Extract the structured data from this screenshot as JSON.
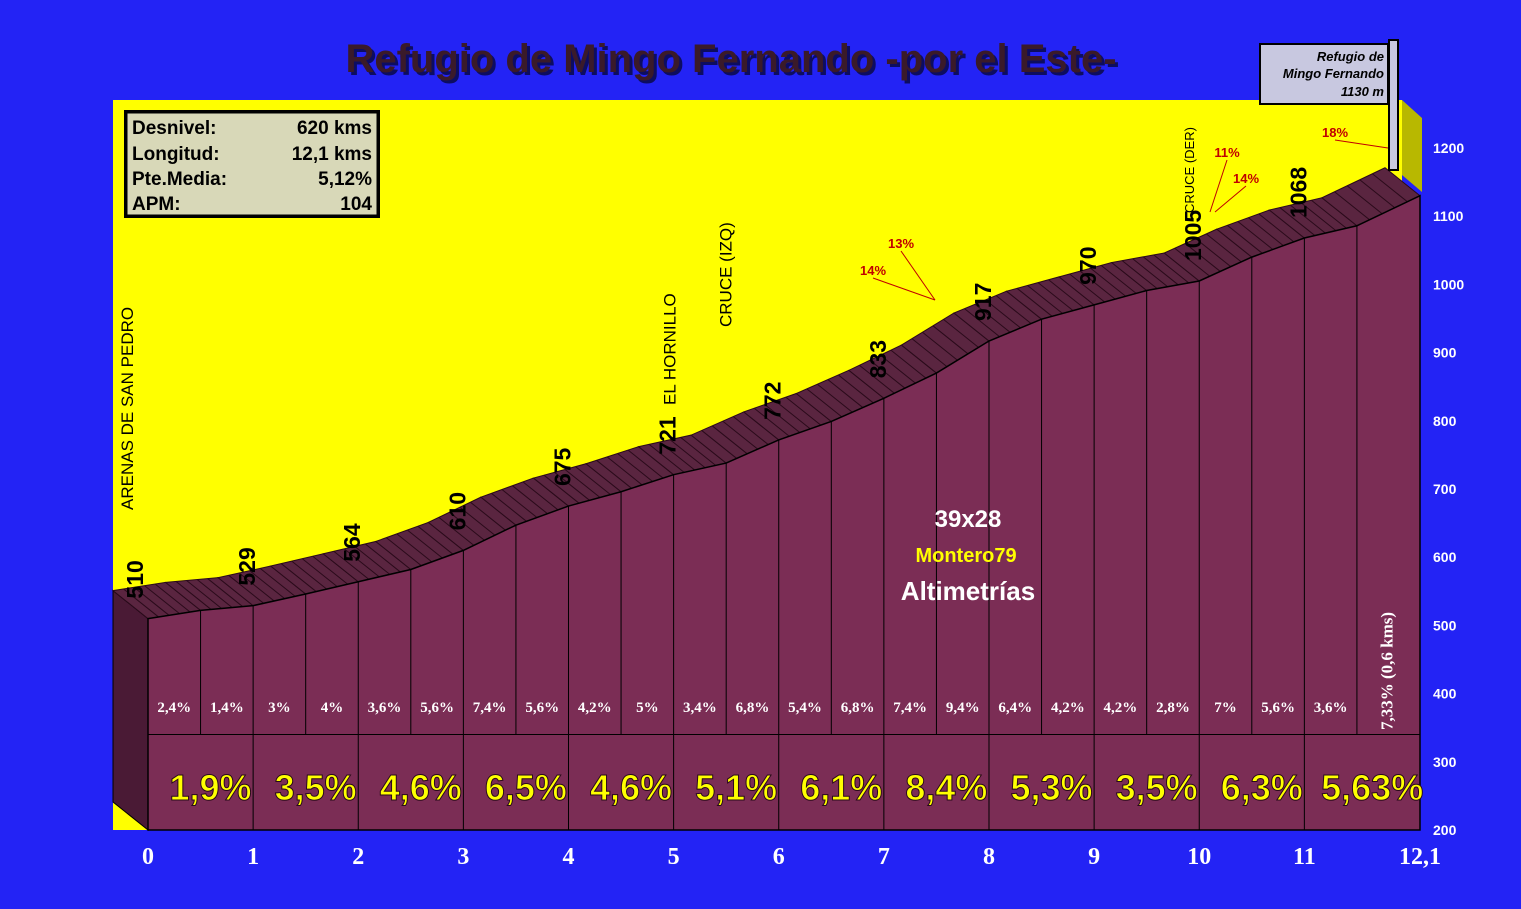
{
  "chart_data": {
    "type": "area",
    "title": "Refugio de Mingo Fernando -por el Este-",
    "stats": [
      {
        "label": "Desnivel:",
        "value": "620 kms"
      },
      {
        "label": "Longitud:",
        "value": "12,1 kms"
      },
      {
        "label": "Pte.Media:",
        "value": "5,12%"
      },
      {
        "label": "APM:",
        "value": "104"
      }
    ],
    "y_ticks": [
      "200",
      "300",
      "400",
      "500",
      "600",
      "700",
      "800",
      "900",
      "1000",
      "1100",
      "1200"
    ],
    "x_ticks": [
      "0",
      "1",
      "2",
      "3",
      "4",
      "5",
      "6",
      "7",
      "8",
      "9",
      "10",
      "11",
      "12,1"
    ],
    "ylim": [
      200,
      1200
    ],
    "xlim": [
      0,
      12.1
    ],
    "profile": [
      {
        "x": 0,
        "y": 510
      },
      {
        "x": 0.5,
        "y": 522
      },
      {
        "x": 1,
        "y": 529
      },
      {
        "x": 1.5,
        "y": 546
      },
      {
        "x": 2,
        "y": 564
      },
      {
        "x": 2.5,
        "y": 582
      },
      {
        "x": 3,
        "y": 610
      },
      {
        "x": 3.5,
        "y": 647
      },
      {
        "x": 4,
        "y": 675
      },
      {
        "x": 4.5,
        "y": 696
      },
      {
        "x": 5,
        "y": 721
      },
      {
        "x": 5.5,
        "y": 738
      },
      {
        "x": 6,
        "y": 772
      },
      {
        "x": 6.5,
        "y": 799
      },
      {
        "x": 7,
        "y": 833
      },
      {
        "x": 7.5,
        "y": 870
      },
      {
        "x": 8,
        "y": 917
      },
      {
        "x": 8.5,
        "y": 949
      },
      {
        "x": 9,
        "y": 970
      },
      {
        "x": 9.5,
        "y": 991
      },
      {
        "x": 10,
        "y": 1005
      },
      {
        "x": 10.5,
        "y": 1040
      },
      {
        "x": 11,
        "y": 1068
      },
      {
        "x": 11.5,
        "y": 1086
      },
      {
        "x": 12.1,
        "y": 1130
      }
    ],
    "elevation_labels": [
      {
        "x": 0,
        "y": 510,
        "text": "510"
      },
      {
        "x": 1,
        "y": 529,
        "text": "529"
      },
      {
        "x": 2,
        "y": 564,
        "text": "564"
      },
      {
        "x": 3,
        "y": 610,
        "text": "610"
      },
      {
        "x": 4,
        "y": 675,
        "text": "675"
      },
      {
        "x": 5,
        "y": 721,
        "text": "721"
      },
      {
        "x": 6,
        "y": 772,
        "text": "772"
      },
      {
        "x": 7,
        "y": 833,
        "text": "833"
      },
      {
        "x": 8,
        "y": 917,
        "text": "917"
      },
      {
        "x": 9,
        "y": 970,
        "text": "970"
      },
      {
        "x": 10,
        "y": 1005,
        "text": "1005"
      },
      {
        "x": 11,
        "y": 1068,
        "text": "1068"
      }
    ],
    "place_labels": [
      {
        "x": 0,
        "text": "ARENAS DE SAN PEDRO"
      },
      {
        "x": 5,
        "text": "EL HORNILLO"
      },
      {
        "x": 6,
        "text": "CRUCE (IZQ)"
      },
      {
        "x": 10,
        "text": "CRUCE (DER)"
      }
    ],
    "segment_gradients": [
      "2,4%",
      "1,4%",
      "3%",
      "4%",
      "3,6%",
      "5,6%",
      "7,4%",
      "5,6%",
      "4,2%",
      "5%",
      "3,4%",
      "6,8%",
      "5,4%",
      "6,8%",
      "7,4%",
      "9,4%",
      "6,4%",
      "4,2%",
      "4,2%",
      "2,8%",
      "7%",
      "5,6%",
      "3,6%"
    ],
    "km_gradients": [
      "1,9%",
      "3,5%",
      "4,6%",
      "6,5%",
      "4,6%",
      "5,1%",
      "6,1%",
      "8,4%",
      "5,3%",
      "3,5%",
      "6,3%",
      "5,63%"
    ],
    "final_gradient": "7,33% (0,6 kms)",
    "steep_notes": [
      {
        "x": 7.2,
        "y": 945,
        "text": "14%"
      },
      {
        "x": 7.5,
        "y": 985,
        "text": "13%"
      },
      {
        "x": 10.4,
        "y": 1138,
        "text": "11%"
      },
      {
        "x": 10.5,
        "y": 1100,
        "text": "14%"
      },
      {
        "x": 11.6,
        "y": 1212,
        "text": "18%"
      }
    ],
    "summit": {
      "name_line1": "Refugio de",
      "name_line2": "Mingo Fernando",
      "elevation": "1130 m"
    },
    "credits": {
      "ratio": "39x28",
      "author": "Montero79",
      "brand": "Altimetrías"
    },
    "colors": {
      "background": "#2323f5",
      "sky": "#ffff00",
      "wall": "#7b2d55",
      "wall_dark": "#4a1a35",
      "top": "#5a2540",
      "km_label": "#ffff00",
      "steep": "#c00000"
    }
  }
}
